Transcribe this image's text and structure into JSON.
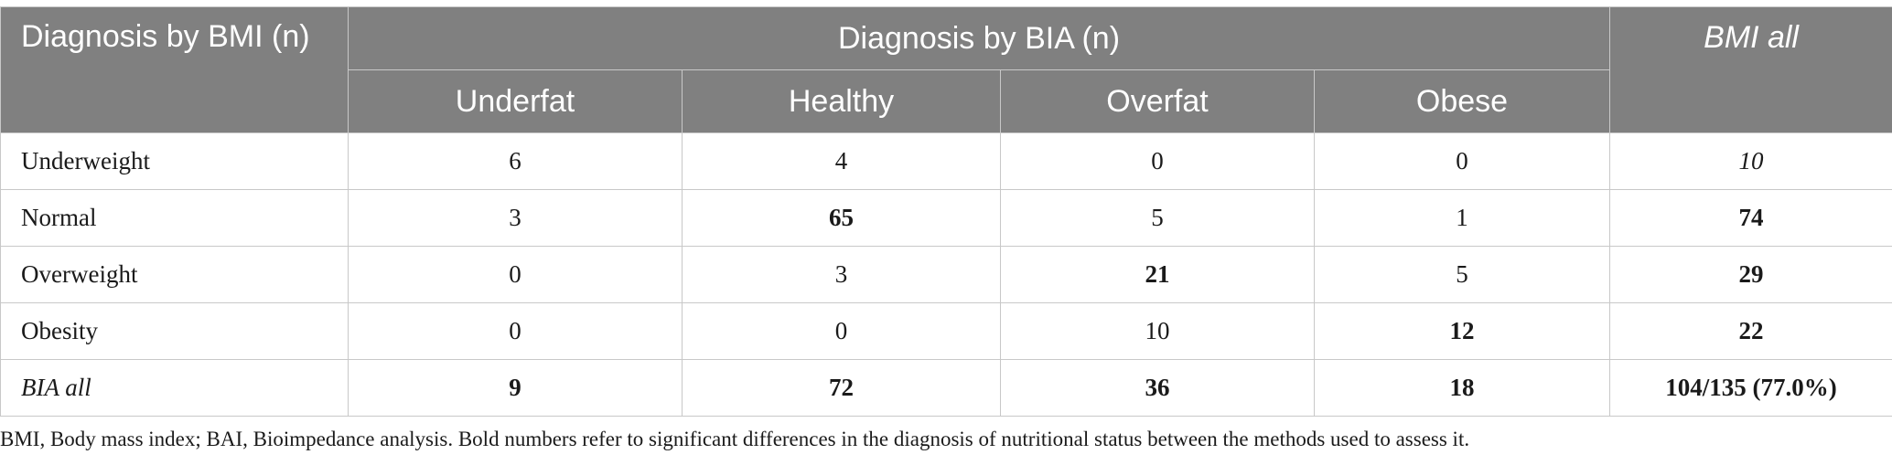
{
  "table": {
    "header": {
      "row_header": "Diagnosis by BMI (n)",
      "group_header": "Diagnosis by BIA (n)",
      "total_header": "BMI all",
      "subheaders": [
        "Underfat",
        "Healthy",
        "Overfat",
        "Obese"
      ]
    },
    "rows": [
      {
        "label": "Underweight",
        "cells": [
          "6",
          "4",
          "0",
          "0"
        ],
        "total": "10"
      },
      {
        "label": "Normal",
        "cells": [
          "3",
          "65",
          "5",
          "1"
        ],
        "total": "74"
      },
      {
        "label": "Overweight",
        "cells": [
          "0",
          "3",
          "21",
          "5"
        ],
        "total": "29"
      },
      {
        "label": "Obesity",
        "cells": [
          "0",
          "0",
          "10",
          "12"
        ],
        "total": "22"
      }
    ],
    "totals_row": {
      "label": "BIA all",
      "cells": [
        "9",
        "72",
        "36",
        "18"
      ],
      "total": "104/135 (77.0%)"
    }
  },
  "footnote": "BMI, Body mass index; BAI, Bioimpedance analysis. Bold numbers refer to significant differences in the diagnosis of nutritional status between the methods used to assess it."
}
